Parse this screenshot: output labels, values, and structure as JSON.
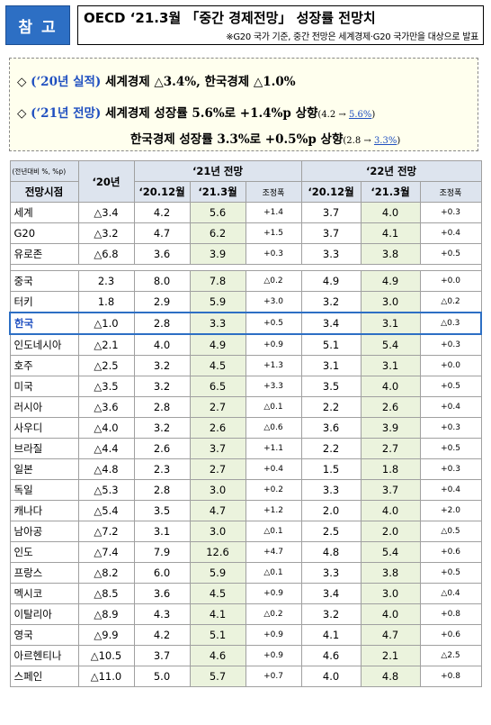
{
  "header": {
    "badge": "참 고",
    "title": "OECD ‘21.3월 「중간 경제전망」 성장률 전망치",
    "note": "※G20 국가 기준, 중간 전망은 세계경제·G20 국가만을 대상으로 발표"
  },
  "summary": {
    "line1": {
      "mark": "◇",
      "label": "(‘20년 실적)",
      "text": "세계경제 △3.4%, 한국경제 △1.0%"
    },
    "line2": {
      "mark": "◇",
      "label": "(‘21년 전망)",
      "text": "세계경제 성장률 5.6%로 +1.4%p 상향",
      "paren_open": "(4.2 → ",
      "paren_val": "5.6%",
      "paren_close": ")"
    },
    "line3": {
      "text": "한국경제 성장률 3.3%로 +0.5%p 상향",
      "paren_open": "(2.8 → ",
      "paren_val": "3.3%",
      "paren_close": ")"
    }
  },
  "table": {
    "unit": "(전년대비 %, %p)",
    "col_period": "전망시점",
    "col_2020": "‘20년",
    "group_2021": "‘21년 전망",
    "group_2022": "‘22년 전망",
    "sub_dec": "‘20.12월",
    "sub_mar": "‘21.3월",
    "sub_adj": "조정폭",
    "group1": [
      {
        "name": "세계",
        "y20": "△3.4",
        "a": "4.2",
        "b": "5.6",
        "c": "+1.4",
        "d": "3.7",
        "e": "4.0",
        "f": "+0.3"
      },
      {
        "name": "G20",
        "y20": "△3.2",
        "a": "4.7",
        "b": "6.2",
        "c": "+1.5",
        "d": "3.7",
        "e": "4.1",
        "f": "+0.4"
      },
      {
        "name": "유로존",
        "y20": "△6.8",
        "a": "3.6",
        "b": "3.9",
        "c": "+0.3",
        "d": "3.3",
        "e": "3.8",
        "f": "+0.5"
      }
    ],
    "group2": [
      {
        "name": "중국",
        "y20": "2.3",
        "a": "8.0",
        "b": "7.8",
        "c": "△0.2",
        "d": "4.9",
        "e": "4.9",
        "f": "+0.0"
      },
      {
        "name": "터키",
        "y20": "1.8",
        "a": "2.9",
        "b": "5.9",
        "c": "+3.0",
        "d": "3.2",
        "e": "3.0",
        "f": "△0.2"
      },
      {
        "name": "한국",
        "y20": "△1.0",
        "a": "2.8",
        "b": "3.3",
        "c": "+0.5",
        "d": "3.4",
        "e": "3.1",
        "f": "△0.3"
      },
      {
        "name": "인도네시아",
        "y20": "△2.1",
        "a": "4.0",
        "b": "4.9",
        "c": "+0.9",
        "d": "5.1",
        "e": "5.4",
        "f": "+0.3"
      },
      {
        "name": "호주",
        "y20": "△2.5",
        "a": "3.2",
        "b": "4.5",
        "c": "+1.3",
        "d": "3.1",
        "e": "3.1",
        "f": "+0.0"
      },
      {
        "name": "미국",
        "y20": "△3.5",
        "a": "3.2",
        "b": "6.5",
        "c": "+3.3",
        "d": "3.5",
        "e": "4.0",
        "f": "+0.5"
      },
      {
        "name": "러시아",
        "y20": "△3.6",
        "a": "2.8",
        "b": "2.7",
        "c": "△0.1",
        "d": "2.2",
        "e": "2.6",
        "f": "+0.4"
      },
      {
        "name": "사우디",
        "y20": "△4.0",
        "a": "3.2",
        "b": "2.6",
        "c": "△0.6",
        "d": "3.6",
        "e": "3.9",
        "f": "+0.3"
      },
      {
        "name": "브라질",
        "y20": "△4.4",
        "a": "2.6",
        "b": "3.7",
        "c": "+1.1",
        "d": "2.2",
        "e": "2.7",
        "f": "+0.5"
      },
      {
        "name": "일본",
        "y20": "△4.8",
        "a": "2.3",
        "b": "2.7",
        "c": "+0.4",
        "d": "1.5",
        "e": "1.8",
        "f": "+0.3"
      },
      {
        "name": "독일",
        "y20": "△5.3",
        "a": "2.8",
        "b": "3.0",
        "c": "+0.2",
        "d": "3.3",
        "e": "3.7",
        "f": "+0.4"
      },
      {
        "name": "캐나다",
        "y20": "△5.4",
        "a": "3.5",
        "b": "4.7",
        "c": "+1.2",
        "d": "2.0",
        "e": "4.0",
        "f": "+2.0"
      },
      {
        "name": "남아공",
        "y20": "△7.2",
        "a": "3.1",
        "b": "3.0",
        "c": "△0.1",
        "d": "2.5",
        "e": "2.0",
        "f": "△0.5"
      },
      {
        "name": "인도",
        "y20": "△7.4",
        "a": "7.9",
        "b": "12.6",
        "c": "+4.7",
        "d": "4.8",
        "e": "5.4",
        "f": "+0.6"
      },
      {
        "name": "프랑스",
        "y20": "△8.2",
        "a": "6.0",
        "b": "5.9",
        "c": "△0.1",
        "d": "3.3",
        "e": "3.8",
        "f": "+0.5"
      },
      {
        "name": "멕시코",
        "y20": "△8.5",
        "a": "3.6",
        "b": "4.5",
        "c": "+0.9",
        "d": "3.4",
        "e": "3.0",
        "f": "△0.4"
      },
      {
        "name": "이탈리아",
        "y20": "△8.9",
        "a": "4.3",
        "b": "4.1",
        "c": "△0.2",
        "d": "3.2",
        "e": "4.0",
        "f": "+0.8"
      },
      {
        "name": "영국",
        "y20": "△9.9",
        "a": "4.2",
        "b": "5.1",
        "c": "+0.9",
        "d": "4.1",
        "e": "4.7",
        "f": "+0.6"
      },
      {
        "name": "아르헨티나",
        "y20": "△10.5",
        "a": "3.7",
        "b": "4.6",
        "c": "+0.9",
        "d": "4.6",
        "e": "2.1",
        "f": "△2.5"
      },
      {
        "name": "스페인",
        "y20": "△11.0",
        "a": "5.0",
        "b": "5.7",
        "c": "+0.7",
        "d": "4.0",
        "e": "4.8",
        "f": "+0.8"
      }
    ]
  }
}
